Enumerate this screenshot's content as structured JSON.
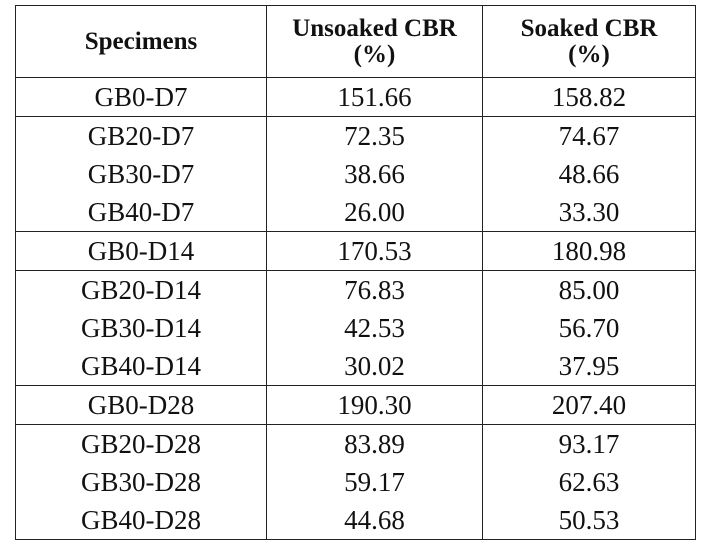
{
  "table": {
    "headers": [
      {
        "lines": [
          "Specimens"
        ]
      },
      {
        "lines": [
          "Unsoaked CBR",
          "(%)"
        ]
      },
      {
        "lines": [
          "Soaked CBR",
          "(%)"
        ]
      }
    ],
    "rows": [
      {
        "specimen": "GB0-D7",
        "unsoaked": "151.66",
        "soaked": "158.82",
        "group_start": true
      },
      {
        "specimen": "GB20-D7",
        "unsoaked": "72.35",
        "soaked": "74.67",
        "group_start": true
      },
      {
        "specimen": "GB30-D7",
        "unsoaked": "38.66",
        "soaked": "48.66",
        "group_start": false
      },
      {
        "specimen": "GB40-D7",
        "unsoaked": "26.00",
        "soaked": "33.30",
        "group_start": false
      },
      {
        "specimen": "GB0-D14",
        "unsoaked": "170.53",
        "soaked": "180.98",
        "group_start": true
      },
      {
        "specimen": "GB20-D14",
        "unsoaked": "76.83",
        "soaked": "85.00",
        "group_start": true
      },
      {
        "specimen": "GB30-D14",
        "unsoaked": "42.53",
        "soaked": "56.70",
        "group_start": false
      },
      {
        "specimen": "GB40-D14",
        "unsoaked": "30.02",
        "soaked": "37.95",
        "group_start": false
      },
      {
        "specimen": "GB0-D28",
        "unsoaked": "190.30",
        "soaked": "207.40",
        "group_start": true
      },
      {
        "specimen": "GB20-D28",
        "unsoaked": "83.89",
        "soaked": "93.17",
        "group_start": true
      },
      {
        "specimen": "GB30-D28",
        "unsoaked": "59.17",
        "soaked": "62.63",
        "group_start": false
      },
      {
        "specimen": "GB40-D28",
        "unsoaked": "44.68",
        "soaked": "50.53",
        "group_start": false
      }
    ]
  }
}
